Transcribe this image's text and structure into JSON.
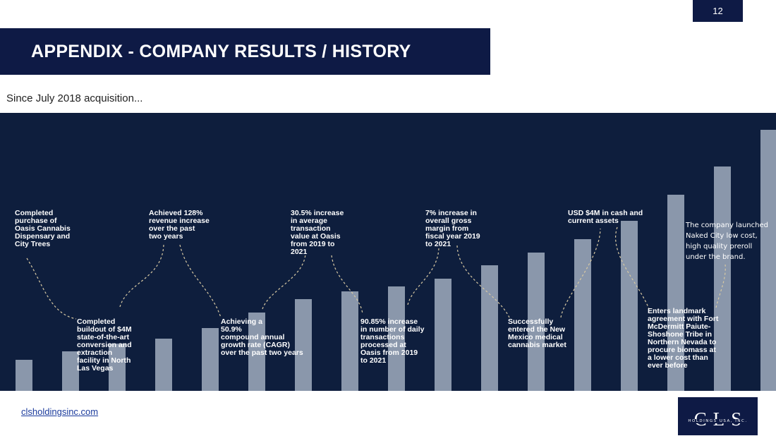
{
  "page_number": "12",
  "title": "APPENDIX  - COMPANY RESULTS / HISTORY",
  "subtitle": "Since July 2018 acquisition...",
  "milestones": [
    "Completed\npurchase of\nOasis Cannabis\nDispensary and\nCity Trees",
    "Completed\nbuildout of $4M\nstate-of-the-art\nconversion and\nextraction\nfacility in North\nLas Vegas",
    "Achieved 128%\nrevenue increase\nover the past\ntwo years",
    "Achieving a\n50.9%\ncompound annual\ngrowth rate (CAGR)\nover the past two years",
    "30.5% increase\nin average\ntransaction\nvalue at Oasis\nfrom 2019 to\n2021",
    "90.85% increase\nin number of daily\ntransactions\nprocessed at\nOasis from 2019\nto 2021",
    "7% increase in\noverall gross\nmargin from\nfiscal year 2019\nto 2021",
    "Successfully\nentered the New\nMexico medical\ncannabis market",
    "USD $4M in cash and\ncurrent assets",
    "Enters landmark\nagreement with Fort\nMcDermitt Paiute-\nShoshone Tribe in\nNorthern Nevada to\nprocure biomass at\na lower cost than\never before",
    "The company launched\nNaked City low cost,\nhigh quality preroll\nunder the brand."
  ],
  "bar_levels": [
    0.12,
    0.15,
    0.18,
    0.2,
    0.24,
    0.3,
    0.35,
    0.38,
    0.4,
    0.43,
    0.48,
    0.53,
    0.58,
    0.65,
    0.75,
    0.86,
    1.0
  ],
  "footer_link": "clsholdingsinc.com",
  "logo": {
    "mark": "CLS",
    "sub": "HOLDINGS USA, INC."
  },
  "colors": {
    "navy": "#0e1a45",
    "panel": "#0e1e3d",
    "bar": "#8a97ab",
    "connector": "#d8c9a3"
  }
}
